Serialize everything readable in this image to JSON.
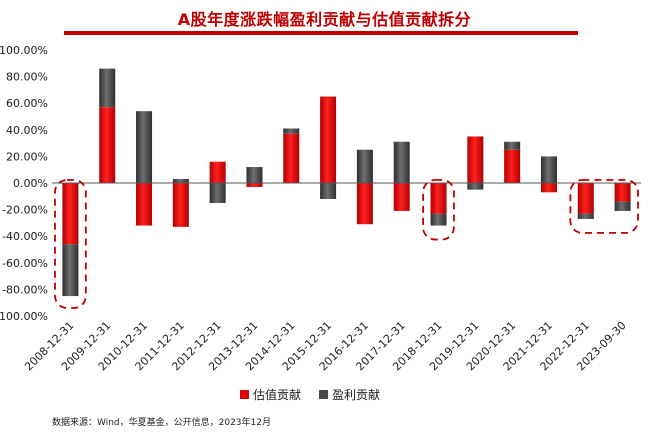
{
  "title": "A股年度涨跌幅盈利贡献与估值贡献拆分",
  "source": "数据来源：Wind，华夏基金，公开信息，2023年12月",
  "colors": {
    "valuation": "#e00000",
    "earnings": "#4a4a4a",
    "title": "#c00000",
    "highlight": "#c00000"
  },
  "chart_data": {
    "type": "bar",
    "stacked": true,
    "title": "A股年度涨跌幅盈利贡献与估值贡献拆分",
    "categories": [
      "2008-12-31",
      "2009-12-31",
      "2010-12-31",
      "2011-12-31",
      "2012-12-31",
      "2013-12-31",
      "2014-12-31",
      "2015-12-31",
      "2016-12-31",
      "2017-12-31",
      "2018-12-31",
      "2019-12-31",
      "2020-12-31",
      "2021-12-31",
      "2022-12-31",
      "2023-09-30"
    ],
    "series": [
      {
        "name": "估值贡献",
        "color": "#e00000",
        "values": [
          -46,
          57,
          -32,
          -33,
          16,
          -3,
          37,
          65,
          -31,
          -21,
          -23,
          35,
          25,
          -7,
          -23,
          -14
        ]
      },
      {
        "name": "盈利贡献",
        "color": "#4a4a4a",
        "values": [
          -39,
          29,
          54,
          3,
          -15,
          12,
          4,
          -12,
          25,
          31,
          -9,
          -5,
          6,
          20,
          -4,
          -7
        ]
      }
    ],
    "yticks": [
      "100.00%",
      "80.00%",
      "60.00%",
      "40.00%",
      "20.00%",
      "0.00%",
      "-20.00%",
      "-40.00%",
      "-60.00%",
      "-80.00%",
      "-100.00%"
    ],
    "ylim": [
      -100,
      100
    ],
    "highlighted_categories": [
      "2008-12-31",
      "2018-12-31",
      "2022-12-31",
      "2023-09-30"
    ],
    "legend_position": "bottom"
  }
}
